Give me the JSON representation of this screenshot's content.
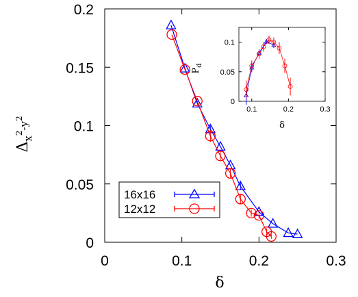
{
  "chart_data": [
    {
      "type": "line",
      "xlabel": "δ",
      "ylabel": {
        "base": "Δ",
        "sub": "x",
        "sup1": "2",
        "mid": "-y",
        "sup2": "2"
      },
      "xlim": [
        0,
        0.3
      ],
      "ylim": [
        0,
        0.2
      ],
      "xticks": [
        "0",
        "0.1",
        "0.2",
        "0.3"
      ],
      "yticks": [
        "0",
        "0.05",
        "0.1",
        "0.15",
        "0.2"
      ],
      "legend_position": "bottom-left",
      "colors": {
        "16x16": "#0000ff",
        "12x12": "#ff0000"
      },
      "series": [
        {
          "name": "16x16",
          "marker": "triangle",
          "x": [
            0.086,
            0.104,
            0.12,
            0.137,
            0.15,
            0.163,
            0.176,
            0.2,
            0.218,
            0.238,
            0.25
          ],
          "y": [
            0.186,
            0.149,
            0.119,
            0.097,
            0.082,
            0.066,
            0.048,
            0.026,
            0.016,
            0.008,
            0.007
          ],
          "err": [
            0,
            0,
            0,
            0.003,
            0,
            0,
            0.003,
            0,
            0,
            0,
            0
          ]
        },
        {
          "name": "12x12",
          "marker": "circle",
          "x": [
            0.087,
            0.104,
            0.12,
            0.137,
            0.15,
            0.163,
            0.176,
            0.19,
            0.2,
            0.21,
            0.216
          ],
          "y": [
            0.178,
            0.148,
            0.121,
            0.091,
            0.074,
            0.059,
            0.037,
            0.025,
            0.023,
            0.009,
            0.005
          ],
          "err": [
            0,
            0,
            0,
            0.005,
            0.004,
            0.004,
            0.004,
            0.003,
            0.003,
            0.003,
            0.002
          ]
        }
      ]
    },
    {
      "type": "line",
      "xlabel": "δ",
      "ylabel": {
        "base": "P",
        "sub": "d"
      },
      "xlim": [
        0.065,
        0.3
      ],
      "ylim": [
        0,
        0.125
      ],
      "xticks": [
        "0.1",
        "0.2",
        "0.3"
      ],
      "yticks": [
        "0",
        "0.05",
        "0.1"
      ],
      "series": [
        {
          "name": "16x16",
          "marker": "triangle",
          "x": [
            0.085,
            0.1,
            0.12,
            0.14,
            0.16
          ],
          "y": [
            0.01,
            0.057,
            0.082,
            0.101,
            0.095
          ],
          "err": [
            0.016,
            0.008,
            0.005,
            0.004,
            0.005
          ]
        },
        {
          "name": "12x12",
          "marker": "circle",
          "x": [
            0.085,
            0.1,
            0.12,
            0.132,
            0.147,
            0.16,
            0.175,
            0.19,
            0.205
          ],
          "y": [
            0.02,
            0.06,
            0.08,
            0.092,
            0.104,
            0.1,
            0.09,
            0.06,
            0.025
          ],
          "err": [
            0.015,
            0.009,
            0.008,
            0.008,
            0.007,
            0.008,
            0.01,
            0.012,
            0.015
          ]
        }
      ]
    }
  ]
}
